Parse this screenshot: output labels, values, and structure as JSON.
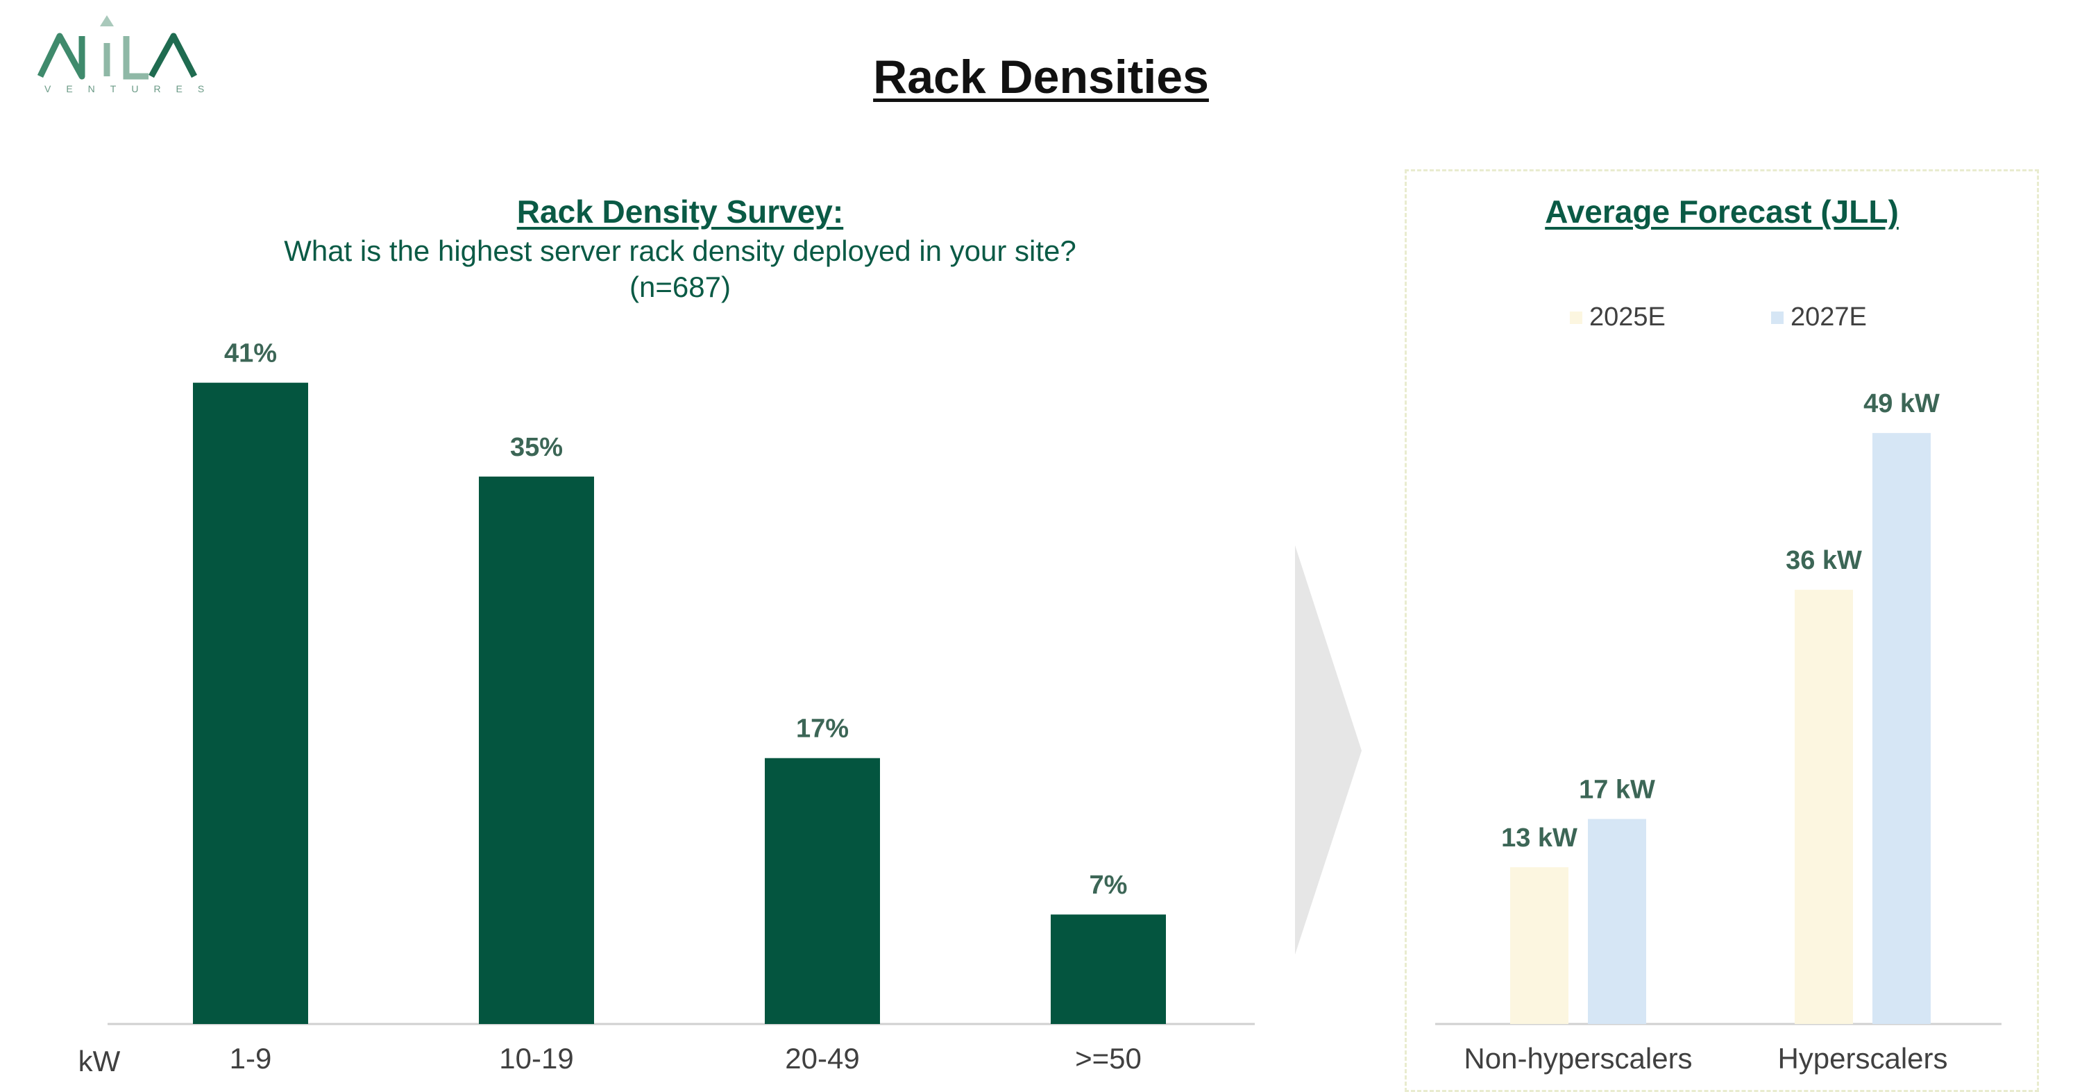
{
  "logo": {
    "wordmark": "NILA",
    "subtitle": "VENTURES"
  },
  "page_title": "Rack Densities",
  "colors": {
    "survey_bar": "#04553f",
    "forecast_2025": "#fcf6e0",
    "forecast_2027": "#d6e6f5",
    "title_green": "#0a5a45",
    "label_green": "#3c6656"
  },
  "chart_data": [
    {
      "type": "bar",
      "title": "Rack Density Survey:",
      "subtitle": "What is the highest server rack density deployed in your site?",
      "subtitle_line2": "(n=687)",
      "xlabel": "kW",
      "categories": [
        "1-9",
        "10-19",
        "20-49",
        ">=50"
      ],
      "values": [
        41,
        35,
        17,
        7
      ],
      "data_labels": [
        "41%",
        "35%",
        "17%",
        "7%"
      ],
      "unit": "%",
      "ylim": [
        0,
        44
      ],
      "grid": false
    },
    {
      "type": "bar",
      "title": "Average Forecast (JLL)",
      "categories": [
        "Non-hyperscalers",
        "Hyperscalers"
      ],
      "series": [
        {
          "name": "2025E",
          "values": [
            13,
            36
          ],
          "data_labels": [
            "13 kW",
            "36 kW"
          ]
        },
        {
          "name": "2027E",
          "values": [
            17,
            49
          ],
          "data_labels": [
            "17 kW",
            "49 kW"
          ]
        }
      ],
      "unit": "kW",
      "ylim": [
        0,
        52
      ],
      "legend": "top",
      "grid": false
    }
  ]
}
